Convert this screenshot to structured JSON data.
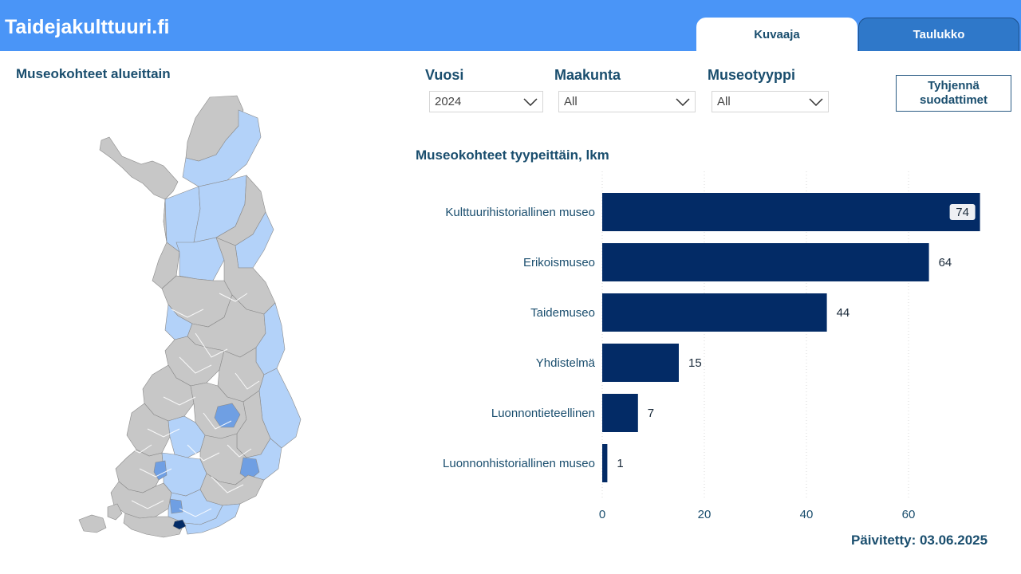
{
  "header": {
    "site_title": "Taidejakulttuuri.fi",
    "tabs": [
      {
        "label": "Kuvaaja",
        "active": true
      },
      {
        "label": "Taulukko",
        "active": false
      }
    ],
    "bar_color": "#4a95f7"
  },
  "map_panel": {
    "title": "Museokohteet alueittain",
    "colors": {
      "no_data": "#c7c7c7",
      "low": "#b3d2f9",
      "mid": "#6f9fe3",
      "high": "#032b66"
    }
  },
  "filters": {
    "year": {
      "label": "Vuosi",
      "value": "2024"
    },
    "region": {
      "label": "Maakunta",
      "value": "All"
    },
    "museum_type": {
      "label": "Museotyyppi",
      "value": "All"
    },
    "clear_button": {
      "line1": "Tyhjennä",
      "line2": "suodattimet"
    }
  },
  "chart_panel": {
    "title": "Museokohteet tyypeittäin, lkm"
  },
  "chart_data": {
    "type": "bar",
    "orientation": "horizontal",
    "categories": [
      "Kulttuurihistoriallinen museo",
      "Erikoismuseo",
      "Taidemuseo",
      "Yhdistelmä",
      "Luonnontieteellinen",
      "Luonnonhistoriallinen museo"
    ],
    "values": [
      74,
      64,
      44,
      15,
      7,
      1
    ],
    "title": "Museokohteet tyypeittäin, lkm",
    "xlim": [
      0,
      74
    ],
    "x_ticks": [
      0,
      20,
      40,
      60
    ],
    "grid": true,
    "bar_color": "#032b66"
  },
  "footer": {
    "updated": "Päivitetty: 03.06.2025"
  }
}
